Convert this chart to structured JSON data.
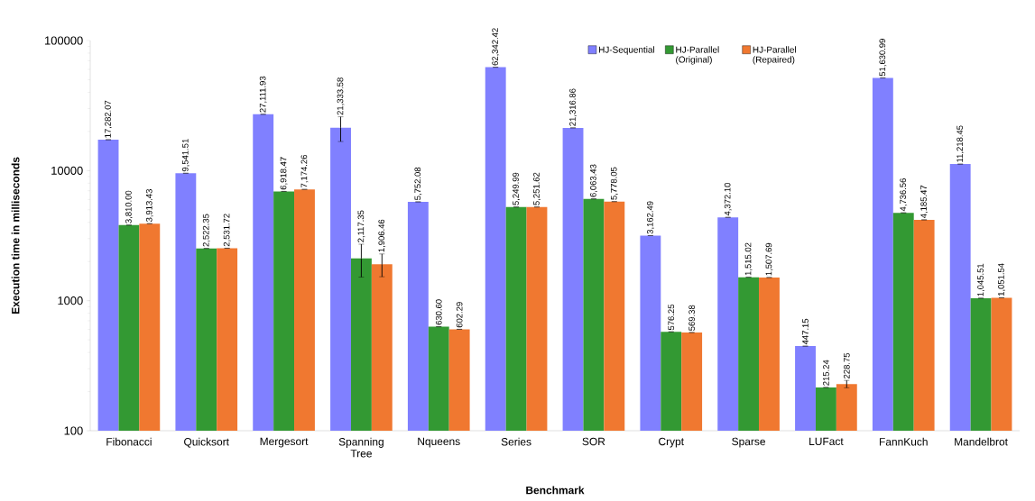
{
  "chart_data": {
    "type": "bar",
    "xlabel": "Benchmark",
    "ylabel": "Execution time  in milliseconds",
    "log": true,
    "legend": "top",
    "ylim": [
      100,
      100000
    ],
    "yticks": [
      100,
      1000,
      10000,
      100000
    ],
    "categories": [
      "Fibonacci",
      "Quicksort",
      "Mergesort",
      "Spanning Tree",
      "Nqueens",
      "Series",
      "SOR",
      "Crypt",
      "Sparse",
      "LUFact",
      "FannKuch",
      "Mandelbrot"
    ],
    "series": [
      {
        "name": "HJ-Sequential",
        "color": "#8080ff",
        "values": [
          17282.07,
          9541.51,
          27111.93,
          21333.58,
          5752.08,
          62342.42,
          21316.86,
          3162.49,
          4372.1,
          447.15,
          51630.99,
          11218.45
        ],
        "errors": [
          null,
          null,
          null,
          4600,
          null,
          null,
          null,
          null,
          null,
          null,
          null,
          null
        ],
        "value_labels": [
          "17,282.07",
          "9,541.51",
          "27,111.93",
          "21,333.58",
          "5,752.08",
          "62,342.42",
          "21,316.86",
          "3,162.49",
          "4,372.10",
          "447.15",
          "51,630.99",
          "11,218.45"
        ]
      },
      {
        "name": "HJ-Parallel (Original)",
        "color": "#339933",
        "values": [
          3810.0,
          2522.35,
          6918.47,
          2117.35,
          630.6,
          5249.99,
          6063.43,
          576.25,
          1515.02,
          215.24,
          4736.56,
          1045.51
        ],
        "errors": [
          null,
          null,
          null,
          600,
          null,
          null,
          null,
          null,
          null,
          null,
          null,
          null
        ],
        "value_labels": [
          "3,810.00",
          "2,522.35",
          "6,918.47",
          "2,117.35",
          "630.60",
          "5,249.99",
          "6,063.43",
          "576.25",
          "1,515.02",
          "215.24",
          "4,736.56",
          "1,045.51"
        ]
      },
      {
        "name": "HJ-Parallel (Repaired)",
        "color": "#f07830",
        "values": [
          3913.43,
          2531.72,
          7174.26,
          1906.46,
          602.29,
          5251.62,
          5778.05,
          569.38,
          1507.69,
          228.75,
          4185.47,
          1051.54
        ],
        "errors": [
          null,
          null,
          null,
          380,
          null,
          null,
          null,
          null,
          null,
          15,
          null,
          null
        ],
        "value_labels": [
          "3,913.43",
          "2,531.72",
          "7,174.26",
          "1,906.46",
          "602.29",
          "5,251.62",
          "5,778.05",
          "569.38",
          "1,507.69",
          "228.75",
          "4,185.47",
          "1,051.54"
        ]
      }
    ]
  }
}
